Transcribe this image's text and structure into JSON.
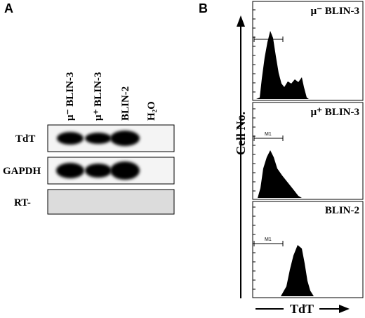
{
  "panel_a": {
    "label": "A",
    "lanes": [
      "μ⁻ BLIN-3",
      "μ⁺ BLIN-3",
      "BLIN-2",
      "H₂O"
    ],
    "rows": [
      "TdT",
      "GAPDH",
      "RT-"
    ]
  },
  "panel_b": {
    "label": "B",
    "histograms": [
      {
        "label": "μ⁻ BLIN-3"
      },
      {
        "label": "μ⁺ BLIN-3",
        "marker": "M1"
      },
      {
        "label": "BLIN-2",
        "marker": "M1"
      }
    ],
    "y_axis_label": "Cell No.",
    "x_axis_label": "TdT"
  }
}
